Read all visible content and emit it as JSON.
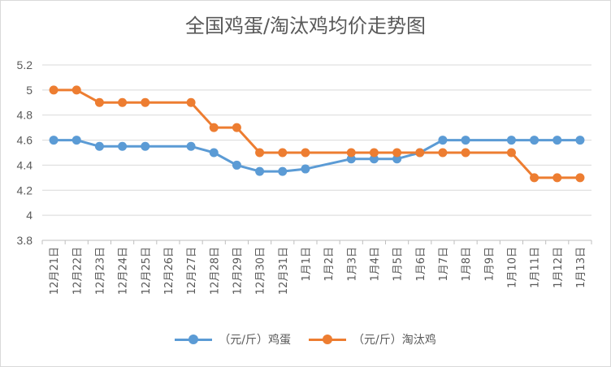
{
  "chart_data": {
    "type": "line",
    "title": "全国鸡蛋/淘汰鸡均价走势图",
    "categories": [
      "12月21日",
      "12月22日",
      "12月23日",
      "12月24日",
      "12月25日",
      "12月26日",
      "12月27日",
      "12月28日",
      "12月29日",
      "12月30日",
      "12月31日",
      "1月1日",
      "1月2日",
      "1月3日",
      "1月4日",
      "1月5日",
      "1月6日",
      "1月7日",
      "1月8日",
      "1月9日",
      "1月10日",
      "1月11日",
      "1月12日",
      "1月13日"
    ],
    "series": [
      {
        "name": "（元/斤）鸡蛋",
        "color": "#5b9bd5",
        "values": [
          4.6,
          4.6,
          4.55,
          4.55,
          4.55,
          null,
          4.55,
          4.5,
          4.4,
          4.35,
          4.35,
          4.37,
          null,
          4.45,
          4.45,
          4.45,
          4.5,
          4.6,
          4.6,
          null,
          4.6,
          4.6,
          4.6,
          4.6
        ]
      },
      {
        "name": "（元/斤）淘汰鸡",
        "color": "#ed7d31",
        "values": [
          5.0,
          5.0,
          4.9,
          4.9,
          4.9,
          null,
          4.9,
          4.7,
          4.7,
          4.5,
          4.5,
          4.5,
          null,
          4.5,
          4.5,
          4.5,
          4.5,
          4.5,
          4.5,
          null,
          4.5,
          4.3,
          4.3,
          4.3
        ]
      }
    ],
    "yticks": [
      "3.8",
      "4",
      "4.2",
      "4.4",
      "4.6",
      "4.8",
      "5",
      "5.2"
    ],
    "ylim": [
      3.8,
      5.2
    ],
    "grid": true,
    "legend_position": "bottom"
  }
}
